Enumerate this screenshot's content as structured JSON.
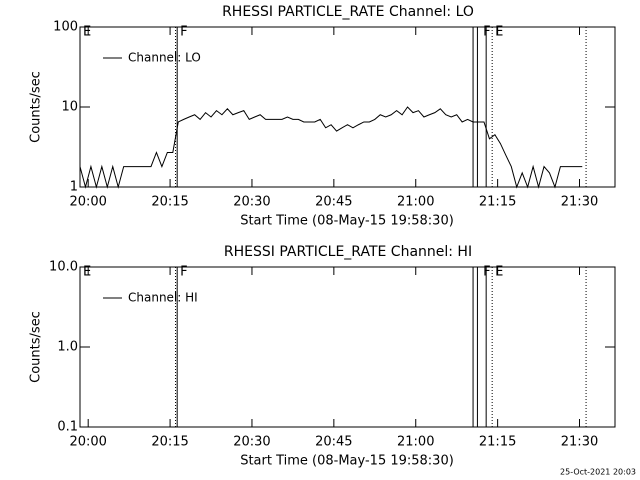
{
  "chart_data": [
    {
      "type": "line",
      "title": "RHESSI PARTICLE_RATE Channel: LO",
      "xlabel": "Start Time (08-May-15 19:58:30)",
      "ylabel": "Counts/sec",
      "log_y": true,
      "ylim": [
        1,
        100
      ],
      "yticks": [
        1,
        10,
        100
      ],
      "xlim": [
        0,
        98
      ],
      "xticks": [
        {
          "value": 1.5,
          "label": "20:00"
        },
        {
          "value": 16.5,
          "label": "20:15"
        },
        {
          "value": 31.5,
          "label": "20:30"
        },
        {
          "value": 46.5,
          "label": "20:45"
        },
        {
          "value": 61.5,
          "label": "21:00"
        },
        {
          "value": 76.5,
          "label": "21:15"
        },
        {
          "value": 91.5,
          "label": "21:30"
        }
      ],
      "x": [
        0,
        1,
        2,
        3,
        4,
        5,
        6,
        7,
        8,
        9,
        10,
        11,
        12,
        13,
        14,
        15,
        16,
        17,
        18,
        19,
        20,
        21,
        22,
        23,
        24,
        25,
        26,
        27,
        28,
        29,
        30,
        31,
        32,
        33,
        34,
        35,
        36,
        37,
        38,
        39,
        40,
        41,
        42,
        43,
        44,
        45,
        46,
        47,
        48,
        49,
        50,
        51,
        52,
        53,
        54,
        55,
        56,
        57,
        58,
        59,
        60,
        61,
        62,
        63,
        64,
        65,
        66,
        67,
        68,
        69,
        70,
        71,
        72,
        73,
        74,
        75,
        76,
        77,
        78,
        79,
        80,
        81,
        82,
        83,
        84,
        85,
        86,
        87,
        88,
        89,
        90,
        91,
        92
      ],
      "series": [
        {
          "name": "Channel: LO",
          "color": "#000000",
          "values": [
            1.8,
            1,
            1.8,
            1,
            1.8,
            1,
            1.8,
            1,
            1.8,
            1.8,
            1.8,
            1.8,
            1.8,
            1.8,
            2.7,
            1.8,
            2.7,
            2.7,
            6.5,
            7,
            7.5,
            8,
            7,
            8.5,
            7.5,
            9,
            8,
            9.5,
            8,
            8.5,
            9,
            7,
            7.5,
            8,
            7,
            7,
            7,
            7,
            7.5,
            7,
            7,
            6.5,
            6.5,
            6.5,
            7,
            5.5,
            6,
            5,
            5.5,
            6,
            5.5,
            6,
            6.5,
            6.5,
            7,
            8,
            7.5,
            8,
            9,
            8,
            10,
            8.5,
            9,
            7.5,
            8,
            8.5,
            9.5,
            8,
            7.5,
            8,
            6.5,
            7,
            6.5,
            6.5,
            6.5,
            4,
            4.5,
            3.5,
            2.5,
            1.8,
            1,
            1.5,
            1,
            1.8,
            1,
            1.8,
            1.5,
            1,
            1.8,
            1.8,
            1.8,
            1.8,
            1.8
          ]
        }
      ],
      "vlines": [
        {
          "x": 17.5,
          "style": "dotted"
        },
        {
          "x": 17.8,
          "style": "solid"
        },
        {
          "x": 72.0,
          "style": "solid"
        },
        {
          "x": 72.8,
          "style": "solid"
        },
        {
          "x": 74.4,
          "style": "solid"
        },
        {
          "x": 75.5,
          "style": "dotted"
        },
        {
          "x": 92.7,
          "style": "dotted"
        }
      ],
      "annotations": [
        {
          "text": "E",
          "x": 0
        },
        {
          "text": "F",
          "x": 17.8
        },
        {
          "text": "F",
          "x": 73.3
        },
        {
          "text": "E",
          "x": 75.5
        }
      ]
    },
    {
      "type": "line",
      "title": "RHESSI PARTICLE_RATE Channel: HI",
      "xlabel": "Start Time (08-May-15 19:58:30)",
      "ylabel": "Counts/sec",
      "log_y": true,
      "ylim": [
        0.1,
        10
      ],
      "yticks": [
        0.1,
        {
          "value": 1,
          "label": "1.0"
        },
        {
          "value": 10,
          "label": "10.0"
        }
      ],
      "xlim": [
        0,
        98
      ],
      "xticks": [
        {
          "value": 1.5,
          "label": "20:00"
        },
        {
          "value": 16.5,
          "label": "20:15"
        },
        {
          "value": 31.5,
          "label": "20:30"
        },
        {
          "value": 46.5,
          "label": "20:45"
        },
        {
          "value": 61.5,
          "label": "21:00"
        },
        {
          "value": 76.5,
          "label": "21:15"
        },
        {
          "value": 91.5,
          "label": "21:30"
        }
      ],
      "x": [],
      "series": [
        {
          "name": "Channel: HI",
          "color": "#000000",
          "values": []
        }
      ],
      "vlines": [
        {
          "x": 17.5,
          "style": "dotted"
        },
        {
          "x": 17.8,
          "style": "solid"
        },
        {
          "x": 72.0,
          "style": "solid"
        },
        {
          "x": 72.8,
          "style": "solid"
        },
        {
          "x": 74.4,
          "style": "solid"
        },
        {
          "x": 75.5,
          "style": "dotted"
        },
        {
          "x": 92.7,
          "style": "dotted"
        }
      ],
      "annotations": [
        {
          "text": "E",
          "x": 0
        },
        {
          "text": "F",
          "x": 17.8
        },
        {
          "text": "F",
          "x": 73.3
        },
        {
          "text": "E",
          "x": 75.5
        }
      ]
    }
  ],
  "footer": "25-Oct-2021 20:03"
}
